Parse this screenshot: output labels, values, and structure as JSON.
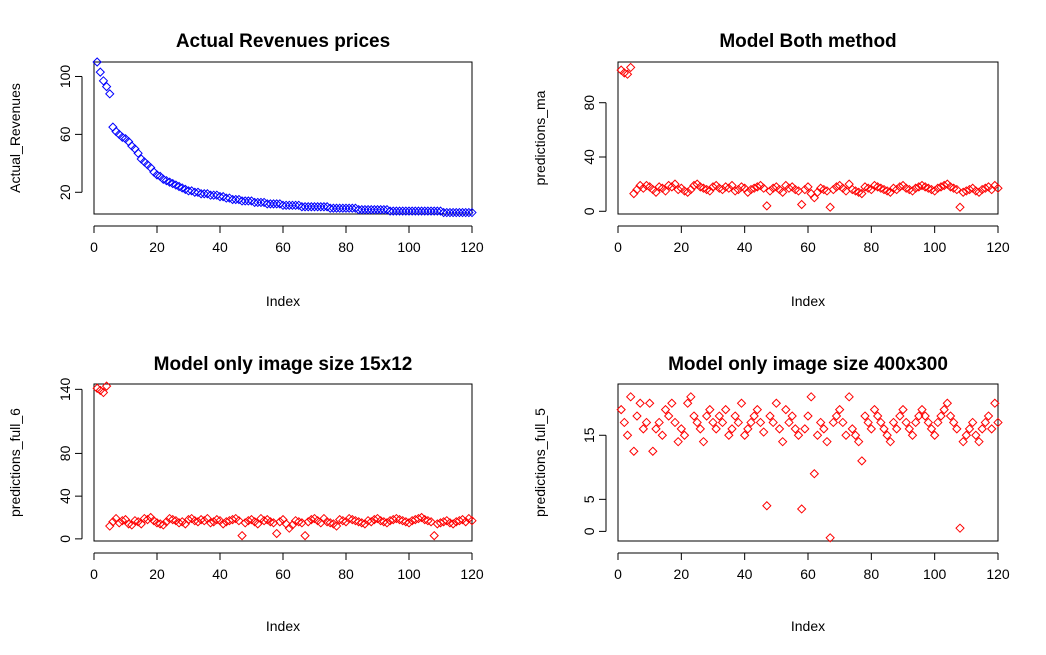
{
  "chart_data": [
    {
      "type": "scatter",
      "title": "Actual Revenues prices",
      "xlabel": "Index",
      "ylabel": "Actual_Revenues",
      "xlim": [
        0,
        120
      ],
      "ylim": [
        5,
        110
      ],
      "xticks": [
        0,
        20,
        40,
        60,
        80,
        100,
        120
      ],
      "yticks": [
        20,
        60,
        100
      ],
      "marker_color": "#0000ff",
      "marker": "diamond",
      "x": [
        1,
        2,
        3,
        4,
        5,
        6,
        7,
        8,
        9,
        10,
        11,
        12,
        13,
        14,
        15,
        16,
        17,
        18,
        19,
        20,
        21,
        22,
        23,
        24,
        25,
        26,
        27,
        28,
        29,
        30,
        31,
        32,
        33,
        34,
        35,
        36,
        37,
        38,
        39,
        40,
        41,
        42,
        43,
        44,
        45,
        46,
        47,
        48,
        49,
        50,
        51,
        52,
        53,
        54,
        55,
        56,
        57,
        58,
        59,
        60,
        61,
        62,
        63,
        64,
        65,
        66,
        67,
        68,
        69,
        70,
        71,
        72,
        73,
        74,
        75,
        76,
        77,
        78,
        79,
        80,
        81,
        82,
        83,
        84,
        85,
        86,
        87,
        88,
        89,
        90,
        91,
        92,
        93,
        94,
        95,
        96,
        97,
        98,
        99,
        100,
        101,
        102,
        103,
        104,
        105,
        106,
        107,
        108,
        109,
        110,
        111,
        112,
        113,
        114,
        115,
        116,
        117,
        118,
        119,
        120
      ],
      "y": [
        110,
        103,
        97,
        93,
        88,
        65,
        62,
        60,
        58,
        57,
        55,
        52,
        50,
        47,
        43,
        41,
        39,
        37,
        34,
        32,
        31,
        29,
        28,
        27,
        26,
        25,
        24,
        23,
        22,
        21,
        21,
        20,
        20,
        19,
        19,
        19,
        18,
        18,
        18,
        17,
        17,
        16,
        16,
        15,
        15,
        15,
        14,
        14,
        14,
        14,
        13,
        13,
        13,
        13,
        12,
        12,
        12,
        12,
        12,
        11,
        11,
        11,
        11,
        11,
        11,
        10,
        10,
        10,
        10,
        10,
        10,
        10,
        10,
        10,
        9,
        9,
        9,
        9,
        9,
        9,
        9,
        9,
        9,
        8,
        8,
        8,
        8,
        8,
        8,
        8,
        8,
        8,
        8,
        7,
        7,
        7,
        7,
        7,
        7,
        7,
        7,
        7,
        7,
        7,
        7,
        7,
        7,
        7,
        7,
        7,
        6,
        6,
        6,
        6,
        6,
        6,
        6,
        6,
        6,
        6
      ]
    },
    {
      "type": "scatter",
      "title": "Model Both method",
      "xlabel": "Index",
      "ylabel": "predictions_ma",
      "xlim": [
        0,
        120
      ],
      "ylim": [
        -2,
        110
      ],
      "xticks": [
        0,
        20,
        40,
        60,
        80,
        100,
        120
      ],
      "yticks": [
        0,
        40,
        80
      ],
      "marker_color": "#ff0000",
      "marker": "diamond",
      "x": [
        1,
        2,
        3,
        4,
        5,
        6,
        7,
        8,
        9,
        10,
        11,
        12,
        13,
        14,
        15,
        16,
        17,
        18,
        19,
        20,
        21,
        22,
        23,
        24,
        25,
        26,
        27,
        28,
        29,
        30,
        31,
        32,
        33,
        34,
        35,
        36,
        37,
        38,
        39,
        40,
        41,
        42,
        43,
        44,
        45,
        46,
        47,
        48,
        49,
        50,
        51,
        52,
        53,
        54,
        55,
        56,
        57,
        58,
        59,
        60,
        61,
        62,
        63,
        64,
        65,
        66,
        67,
        68,
        69,
        70,
        71,
        72,
        73,
        74,
        75,
        76,
        77,
        78,
        79,
        80,
        81,
        82,
        83,
        84,
        85,
        86,
        87,
        88,
        89,
        90,
        91,
        92,
        93,
        94,
        95,
        96,
        97,
        98,
        99,
        100,
        101,
        102,
        103,
        104,
        105,
        106,
        107,
        108,
        109,
        110,
        111,
        112,
        113,
        114,
        115,
        116,
        117,
        118,
        119,
        120
      ],
      "y": [
        104,
        102,
        101,
        106,
        13,
        16,
        19,
        17,
        19,
        18,
        16,
        14,
        18,
        17,
        15,
        19,
        18,
        20,
        16,
        17,
        15,
        14,
        16,
        19,
        20,
        18,
        17,
        16,
        15,
        18,
        19,
        17,
        16,
        18,
        17,
        19,
        15,
        16,
        18,
        17,
        14,
        16,
        17,
        18,
        19,
        17,
        4,
        15,
        17,
        18,
        16,
        14,
        19,
        17,
        18,
        16,
        15,
        5,
        16,
        18,
        13,
        10,
        14,
        17,
        16,
        15,
        3,
        16,
        18,
        19,
        17,
        15,
        20,
        16,
        15,
        14,
        13,
        18,
        17,
        16,
        19,
        18,
        17,
        16,
        15,
        14,
        17,
        16,
        18,
        19,
        17,
        16,
        15,
        17,
        18,
        19,
        18,
        17,
        16,
        15,
        17,
        18,
        19,
        20,
        18,
        17,
        16,
        3,
        14,
        15,
        16,
        17,
        15,
        14,
        16,
        17,
        18,
        16,
        19,
        17
      ]
    },
    {
      "type": "scatter",
      "title": "Model only image size 15x12",
      "xlabel": "Index",
      "ylabel": "predictions_full_6",
      "xlim": [
        0,
        120
      ],
      "ylim": [
        -2,
        145
      ],
      "xticks": [
        0,
        20,
        40,
        60,
        80,
        100,
        120
      ],
      "yticks": [
        0,
        40,
        80,
        140
      ],
      "marker_color": "#ff0000",
      "marker": "diamond",
      "x": [
        1,
        2,
        3,
        4,
        5,
        6,
        7,
        8,
        9,
        10,
        11,
        12,
        13,
        14,
        15,
        16,
        17,
        18,
        19,
        20,
        21,
        22,
        23,
        24,
        25,
        26,
        27,
        28,
        29,
        30,
        31,
        32,
        33,
        34,
        35,
        36,
        37,
        38,
        39,
        40,
        41,
        42,
        43,
        44,
        45,
        46,
        47,
        48,
        49,
        50,
        51,
        52,
        53,
        54,
        55,
        56,
        57,
        58,
        59,
        60,
        61,
        62,
        63,
        64,
        65,
        66,
        67,
        68,
        69,
        70,
        71,
        72,
        73,
        74,
        75,
        76,
        77,
        78,
        79,
        80,
        81,
        82,
        83,
        84,
        85,
        86,
        87,
        88,
        89,
        90,
        91,
        92,
        93,
        94,
        95,
        96,
        97,
        98,
        99,
        100,
        101,
        102,
        103,
        104,
        105,
        106,
        107,
        108,
        109,
        110,
        111,
        112,
        113,
        114,
        115,
        116,
        117,
        118,
        119,
        120
      ],
      "y": [
        141,
        139,
        137,
        143,
        12,
        16,
        19,
        15,
        17,
        18,
        14,
        13,
        17,
        16,
        14,
        19,
        18,
        20,
        17,
        15,
        14,
        13,
        16,
        19,
        18,
        17,
        15,
        16,
        14,
        18,
        19,
        17,
        16,
        18,
        17,
        19,
        15,
        16,
        18,
        17,
        14,
        16,
        17,
        18,
        19,
        17,
        3,
        15,
        17,
        18,
        16,
        14,
        19,
        17,
        18,
        16,
        15,
        5,
        16,
        18,
        14,
        10,
        13,
        17,
        16,
        15,
        3,
        16,
        18,
        19,
        17,
        15,
        19,
        16,
        15,
        14,
        12,
        18,
        17,
        16,
        19,
        18,
        17,
        16,
        15,
        14,
        17,
        16,
        18,
        19,
        17,
        16,
        15,
        17,
        18,
        19,
        18,
        17,
        16,
        15,
        17,
        18,
        19,
        20,
        18,
        17,
        16,
        3,
        14,
        15,
        16,
        17,
        15,
        14,
        16,
        17,
        18,
        16,
        19,
        17
      ]
    },
    {
      "type": "scatter",
      "title": "Model only image size 400x300",
      "xlabel": "Index",
      "ylabel": "predictions_full_5",
      "xlim": [
        0,
        120
      ],
      "ylim": [
        -1.5,
        23
      ],
      "xticks": [
        0,
        20,
        40,
        60,
        80,
        100,
        120
      ],
      "yticks": [
        0,
        5,
        15
      ],
      "marker_color": "#ff0000",
      "marker": "diamond",
      "x": [
        1,
        2,
        3,
        4,
        5,
        6,
        7,
        8,
        9,
        10,
        11,
        12,
        13,
        14,
        15,
        16,
        17,
        18,
        19,
        20,
        21,
        22,
        23,
        24,
        25,
        26,
        27,
        28,
        29,
        30,
        31,
        32,
        33,
        34,
        35,
        36,
        37,
        38,
        39,
        40,
        41,
        42,
        43,
        44,
        45,
        46,
        47,
        48,
        49,
        50,
        51,
        52,
        53,
        54,
        55,
        56,
        57,
        58,
        59,
        60,
        61,
        62,
        63,
        64,
        65,
        66,
        67,
        68,
        69,
        70,
        71,
        72,
        73,
        74,
        75,
        76,
        77,
        78,
        79,
        80,
        81,
        82,
        83,
        84,
        85,
        86,
        87,
        88,
        89,
        90,
        91,
        92,
        93,
        94,
        95,
        96,
        97,
        98,
        99,
        100,
        101,
        102,
        103,
        104,
        105,
        106,
        107,
        108,
        109,
        110,
        111,
        112,
        113,
        114,
        115,
        116,
        117,
        118,
        119,
        120
      ],
      "y": [
        19,
        17,
        15,
        21,
        12.5,
        18,
        20,
        16,
        17,
        20,
        12.5,
        16,
        17,
        15,
        19,
        18,
        20,
        17,
        14,
        16,
        15,
        20,
        21,
        18,
        17,
        16,
        14,
        18,
        19,
        17,
        16,
        18,
        17,
        19,
        15,
        16,
        18,
        17,
        20,
        15,
        16,
        17,
        18,
        19,
        17,
        15.5,
        4,
        18,
        17,
        20,
        16,
        14,
        19,
        17,
        18,
        16,
        15,
        3.5,
        16,
        18,
        21,
        9,
        15,
        17,
        16,
        14,
        -1,
        17,
        18,
        19,
        17,
        15,
        21,
        16,
        15,
        14,
        11,
        18,
        17,
        16,
        19,
        18,
        17,
        16,
        15,
        14,
        17,
        16,
        18,
        19,
        17,
        16,
        15,
        17,
        18,
        19,
        18,
        17,
        16,
        15,
        17,
        18,
        19,
        20,
        18,
        17,
        16,
        0.5,
        14,
        15,
        16,
        17,
        15,
        14,
        16,
        17,
        18,
        16,
        20,
        17
      ]
    }
  ]
}
